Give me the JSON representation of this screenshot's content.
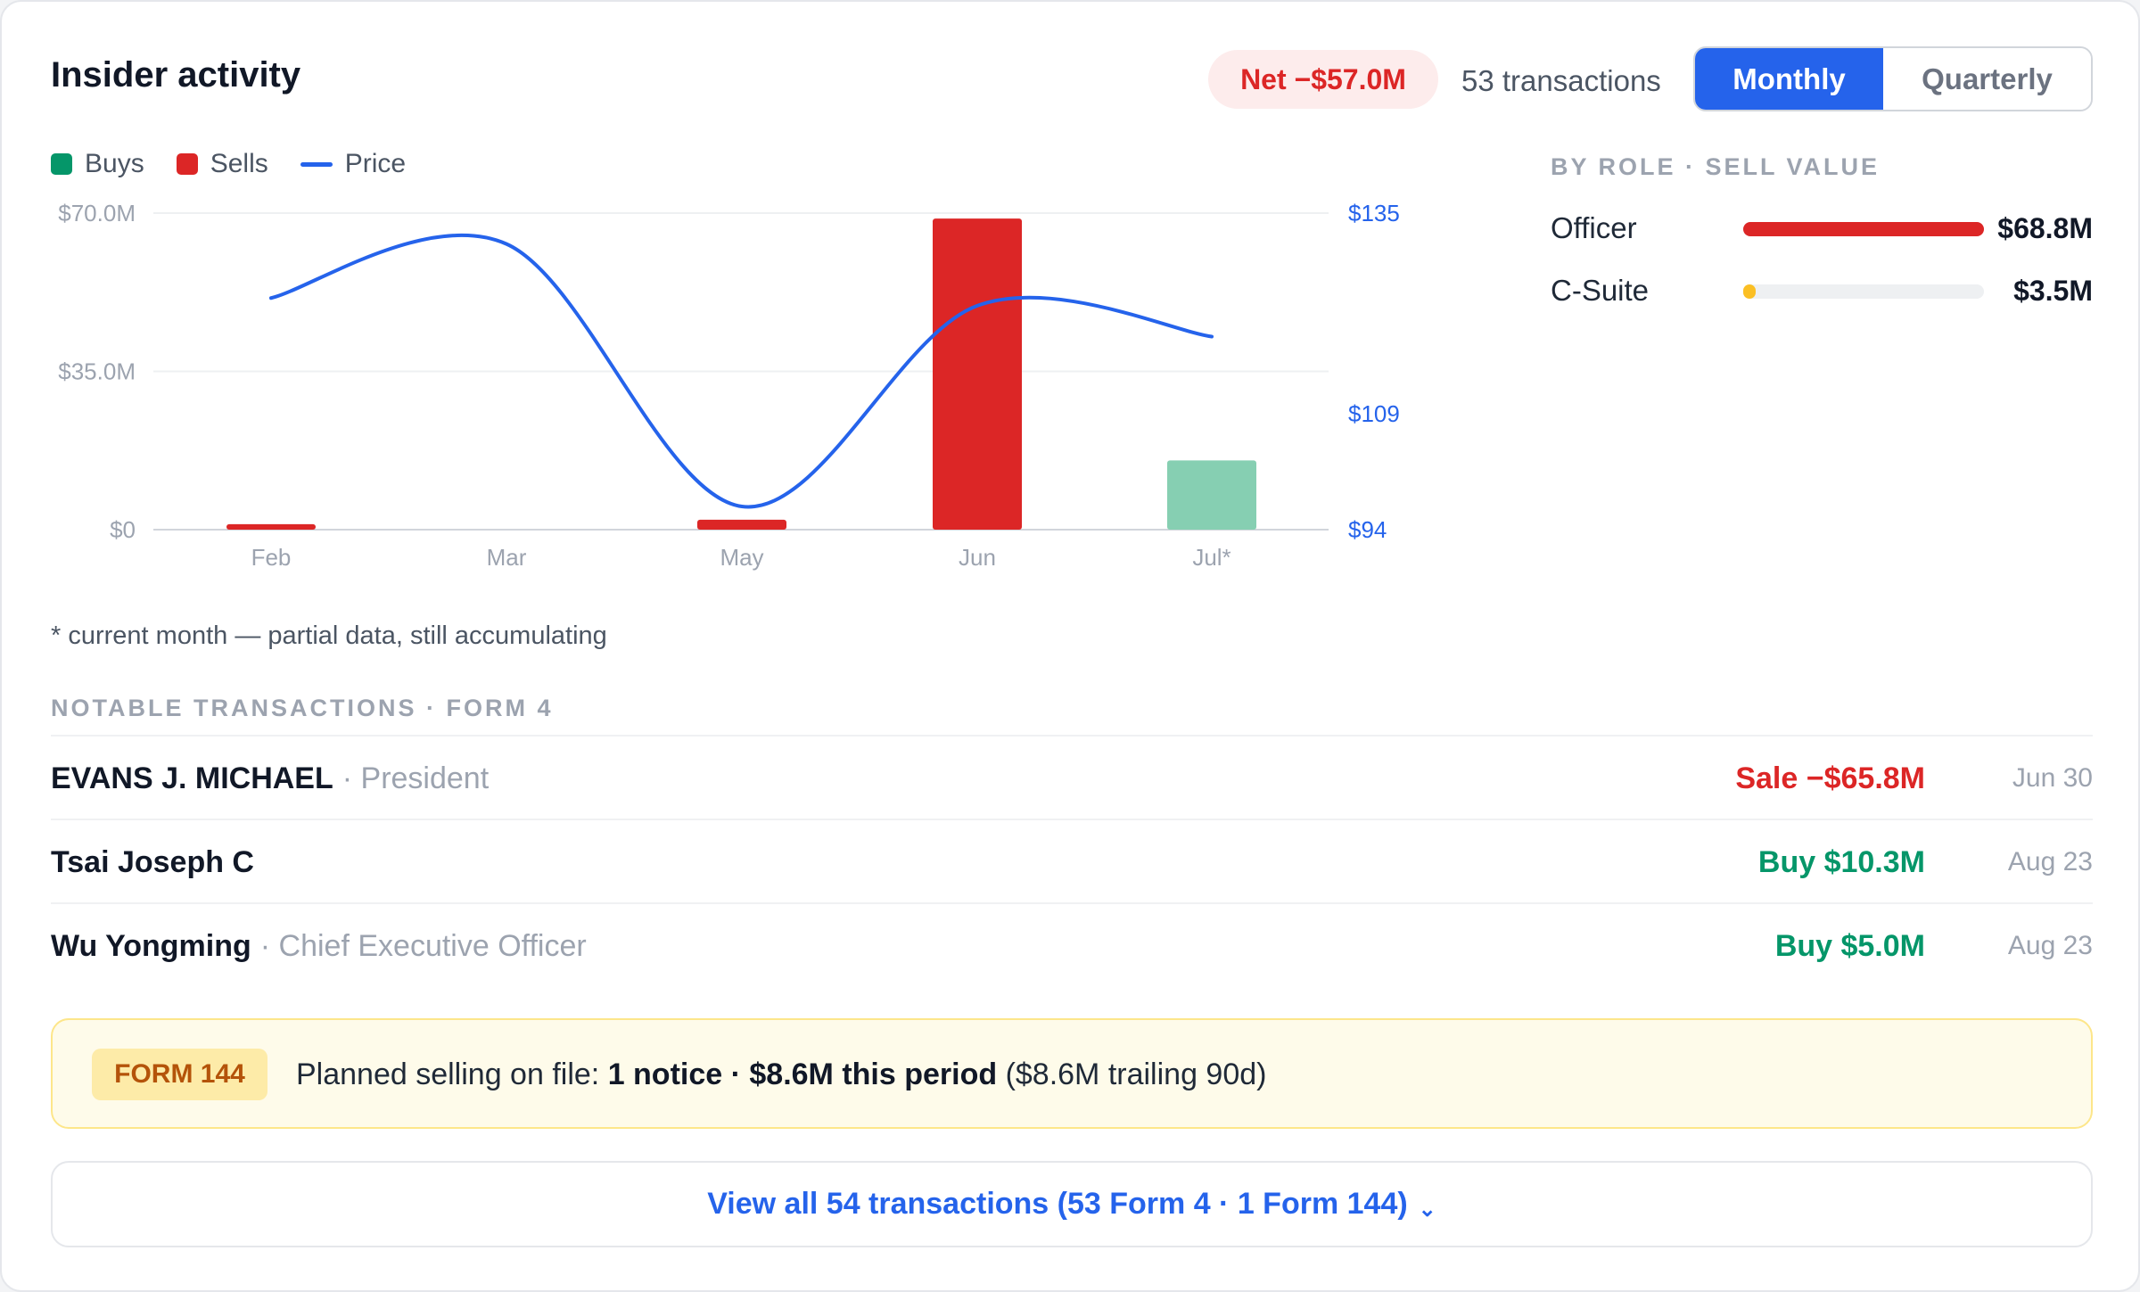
{
  "header": {
    "title": "Insider activity",
    "net": "Net −$57.0M",
    "transactions": "53 transactions",
    "toggle": {
      "active": "Monthly",
      "inactive": "Quarterly"
    }
  },
  "legend": {
    "buys": "Buys",
    "sells": "Sells",
    "price": "Price"
  },
  "chart_data": {
    "type": "bar",
    "categories": [
      "Feb",
      "Mar",
      "May",
      "Jun",
      "Jul*"
    ],
    "series": [
      {
        "name": "Sells",
        "values": [
          1.2,
          0,
          2.2,
          68.8,
          0
        ],
        "color": "#dc2626"
      },
      {
        "name": "Buys",
        "values": [
          0,
          0,
          0,
          0,
          15.3
        ],
        "color": "#86cfb2"
      }
    ],
    "price_line": {
      "name": "Price",
      "values": [
        124,
        131,
        97,
        123,
        119
      ],
      "axis": "right",
      "color": "#2563eb"
    },
    "y_left": {
      "ticks": [
        "$70.0M",
        "$35.0M",
        "$0"
      ],
      "range": [
        0,
        70
      ]
    },
    "y_right": {
      "ticks": [
        "$135",
        "$109",
        "$94"
      ],
      "range": [
        94,
        135
      ]
    },
    "grid": true,
    "legend": "top-left"
  },
  "footnote": "* current month — partial data, still accumulating",
  "by_role": {
    "heading": "BY ROLE · SELL VALUE",
    "rows": [
      {
        "name": "Officer",
        "value": "$68.8M",
        "fraction": 1.0,
        "color": "#dc2626"
      },
      {
        "name": "C-Suite",
        "value": "$3.5M",
        "fraction": 0.05,
        "color": "#fbbf24"
      }
    ]
  },
  "notable": {
    "heading": "NOTABLE TRANSACTIONS · FORM 4",
    "rows": [
      {
        "name": "EVANS J. MICHAEL",
        "role": "· President",
        "amount": "Sale −$65.8M",
        "date": "Jun 30",
        "color": "#dc2626"
      },
      {
        "name": "Tsai Joseph C",
        "role": "",
        "amount": "Buy $10.3M",
        "date": "Aug 23",
        "color": "#059669"
      },
      {
        "name": "Wu Yongming",
        "role": "· Chief Executive Officer",
        "amount": "Buy $5.0M",
        "date": "Aug 23",
        "color": "#059669"
      }
    ]
  },
  "form144": {
    "badge": "FORM 144",
    "prefix": "Planned selling on file:",
    "bold": "1 notice · $8.6M this period",
    "suffix": "($8.6M trailing 90d)"
  },
  "view_all": {
    "label": "View all 54 transactions (53 Form 4 · 1 Form 144)",
    "chevron": "⌄"
  },
  "colors": {
    "accent": "#2563eb",
    "sell": "#dc2626",
    "buy": "#059669",
    "buy_bar": "#86cfb2"
  }
}
